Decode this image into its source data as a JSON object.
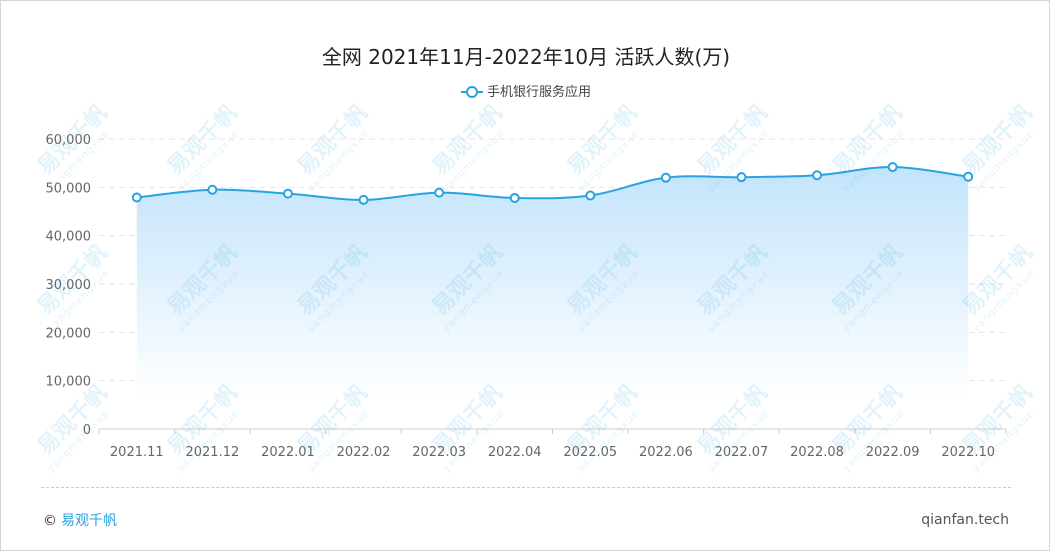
{
  "title": "全网 2021年11月-2022年10月 活跃人数(万)",
  "legend_label": "手机银行服务应用",
  "copyright_symbol": "©",
  "brand": "易观千帆",
  "site": "qianfan.tech",
  "watermark": {
    "text": "易观千帆",
    "sub": "yangmengxue"
  },
  "colors": {
    "line": "#29a3e0",
    "area_top": "#bfe2fb",
    "area_bottom": "#ffffff",
    "grid": "#e6e6e6",
    "axis_text": "#666666"
  },
  "chart_data": {
    "type": "area",
    "title": "全网 2021年11月-2022年10月 活跃人数(万)",
    "categories": [
      "2021.11",
      "2021.12",
      "2022.01",
      "2022.02",
      "2022.03",
      "2022.04",
      "2022.05",
      "2022.06",
      "2022.07",
      "2022.08",
      "2022.09",
      "2022.10"
    ],
    "series": [
      {
        "name": "手机银行服务应用",
        "values": [
          47900,
          49500,
          48700,
          47400,
          48900,
          47800,
          48300,
          52000,
          52100,
          52500,
          54200,
          52200
        ]
      }
    ],
    "ylim": [
      0,
      60000
    ],
    "yticks": [
      0,
      10000,
      20000,
      30000,
      40000,
      50000,
      60000
    ],
    "ytick_labels": [
      "0",
      "10,000",
      "20,000",
      "30,000",
      "40,000",
      "50,000",
      "60,000"
    ],
    "grid": true,
    "smooth": true,
    "legend_position": "top-center"
  }
}
